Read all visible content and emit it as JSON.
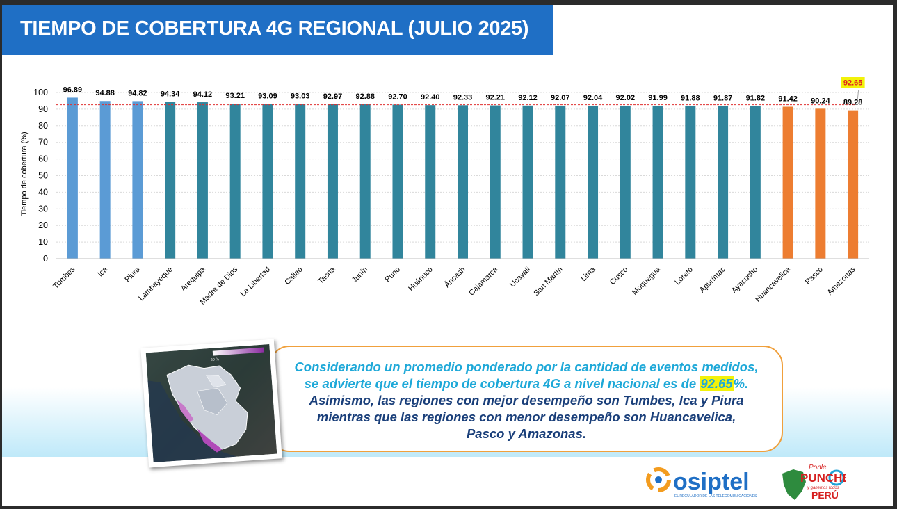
{
  "slide": {
    "title": "TIEMPO DE COBERTURA 4G REGIONAL (JULIO 2025)"
  },
  "chart_data": {
    "type": "bar",
    "ylabel": "Tiempo de cobertura (%)",
    "ylim": [
      0,
      100
    ],
    "yticks": [
      0,
      10,
      20,
      30,
      40,
      50,
      60,
      70,
      80,
      90,
      100
    ],
    "grid": true,
    "categories": [
      "Tumbes",
      "Ica",
      "Piura",
      "Lambayeque",
      "Arequipa",
      "Madre de Dios",
      "La Libertad",
      "Callao",
      "Tacna",
      "Junín",
      "Puno",
      "Huánuco",
      "Áncash",
      "Cajamarca",
      "Ucayali",
      "San Martín",
      "Lima",
      "Cusco",
      "Moquegua",
      "Loreto",
      "Apurímac",
      "Ayacucho",
      "Huancavelica",
      "Pasco",
      "Amazonas"
    ],
    "values": [
      96.89,
      94.88,
      94.82,
      94.34,
      94.12,
      93.21,
      93.09,
      93.03,
      92.97,
      92.88,
      92.7,
      92.4,
      92.33,
      92.21,
      92.12,
      92.07,
      92.04,
      92.02,
      91.99,
      91.88,
      91.87,
      91.82,
      91.42,
      90.24,
      89.28
    ],
    "value_labels": [
      "96.89",
      "94.88",
      "94.82",
      "94.34",
      "94.12",
      "93.21",
      "93.09",
      "93.03",
      "92.97",
      "92.88",
      "92.70",
      "92.40",
      "92.33",
      "92.21",
      "92.12",
      "92.07",
      "92.04",
      "92.02",
      "91.99",
      "91.88",
      "91.87",
      "91.82",
      "91.42",
      "90.24",
      "89.28"
    ],
    "bar_groups": [
      "top",
      "top",
      "top",
      "mid",
      "mid",
      "mid",
      "mid",
      "mid",
      "mid",
      "mid",
      "mid",
      "mid",
      "mid",
      "mid",
      "mid",
      "mid",
      "mid",
      "mid",
      "mid",
      "mid",
      "mid",
      "mid",
      "low",
      "low",
      "low"
    ],
    "colors": {
      "top": "#5b9bd5",
      "mid": "#31859c",
      "low": "#ed7d31",
      "reference": "#e03030"
    },
    "reference_line": {
      "value": 92.65,
      "label": "92.65"
    }
  },
  "info": {
    "line1": "Considerando un promedio ponderado por la cantidad de eventos medidos,",
    "line2_pre": "se advierte que el tiempo de cobertura 4G a nivel nacional es de ",
    "line2_value": "92.65",
    "line2_post": "%.",
    "line3": "Asimismo, las regiones con mejor desempeño son Tumbes, Ica y Piura",
    "line4": "mientras que las regiones con menor desempeño son Huancavelica,",
    "line5": "Pasco y Amazonas."
  },
  "logos": {
    "osiptel_name": "osiptel",
    "osiptel_tagline": "EL REGULADOR DE LAS TELECOMUNICACIONES",
    "campaign_line1": "Ponle",
    "campaign_line2": "PUNCHE",
    "campaign_line3": "y ganemos todos",
    "campaign_line4": "PERÚ"
  }
}
